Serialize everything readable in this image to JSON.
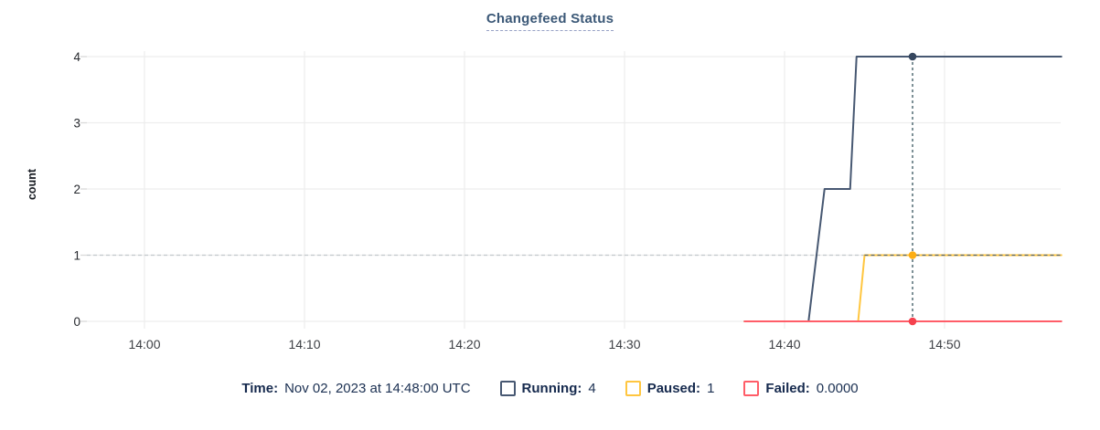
{
  "title": "Changefeed Status",
  "chart_data": {
    "type": "line",
    "title": "Changefeed Status",
    "xlabel": "",
    "ylabel": "count",
    "ylim": [
      0,
      4
    ],
    "y_ticks": [
      0,
      1,
      2,
      3,
      4
    ],
    "x_ticks": [
      {
        "t": 0,
        "label": "14:00"
      },
      {
        "t": 10,
        "label": "14:10"
      },
      {
        "t": 20,
        "label": "14:20"
      },
      {
        "t": 30,
        "label": "14:30"
      },
      {
        "t": 40,
        "label": "14:40"
      },
      {
        "t": 50,
        "label": "14:50"
      }
    ],
    "x_axis_note": "t = minutes after 14:00; visible axis range approx 13:56 to 14:57",
    "xlim_minutes": [
      -3.6,
      57.3
    ],
    "grid": true,
    "series": [
      {
        "name": "Running",
        "color": "#475872",
        "dot_color": "#36475f",
        "points": [
          [
            37.5,
            0
          ],
          [
            41.5,
            0
          ],
          [
            42.5,
            2
          ],
          [
            44.1,
            2
          ],
          [
            44.5,
            4
          ],
          [
            57.3,
            4
          ]
        ]
      },
      {
        "name": "Paused",
        "color": "#ffc640",
        "dot_color": "#fdae13",
        "points": [
          [
            37.5,
            0
          ],
          [
            44.6,
            0
          ],
          [
            45.0,
            1
          ],
          [
            57.3,
            1
          ]
        ]
      },
      {
        "name": "Failed",
        "color": "#ff5d68",
        "dot_color": "#f5414e",
        "points": [
          [
            37.5,
            0
          ],
          [
            57.3,
            0
          ]
        ]
      }
    ],
    "crosshair": {
      "t": 48,
      "time_label": "14:48:00",
      "h_guide_value": 1,
      "hover_points": [
        {
          "series": "Running",
          "t": 48,
          "v": 4
        },
        {
          "series": "Paused",
          "t": 48,
          "v": 1
        },
        {
          "series": "Failed",
          "t": 48,
          "v": 0
        }
      ]
    }
  },
  "legend": {
    "time_label": "Time:",
    "time_value": "Nov 02, 2023 at 14:48:00 UTC",
    "items": [
      {
        "label": "Running:",
        "value": "4",
        "color": "#475872"
      },
      {
        "label": "Paused:",
        "value": "1",
        "color": "#ffc640"
      },
      {
        "label": "Failed:",
        "value": "0.0000",
        "color": "#ff5d68"
      }
    ]
  },
  "colors": {
    "grid": "#ededed",
    "tick_stub": "#d9d9d9",
    "y_tick_text": "#24272c",
    "x_tick_text": "#3c3f44",
    "dashed_guide_light": "#c2c8cb",
    "dashed_guide_dark": "#54656e",
    "crosshair": "#46606a",
    "title": "#3b5877"
  }
}
